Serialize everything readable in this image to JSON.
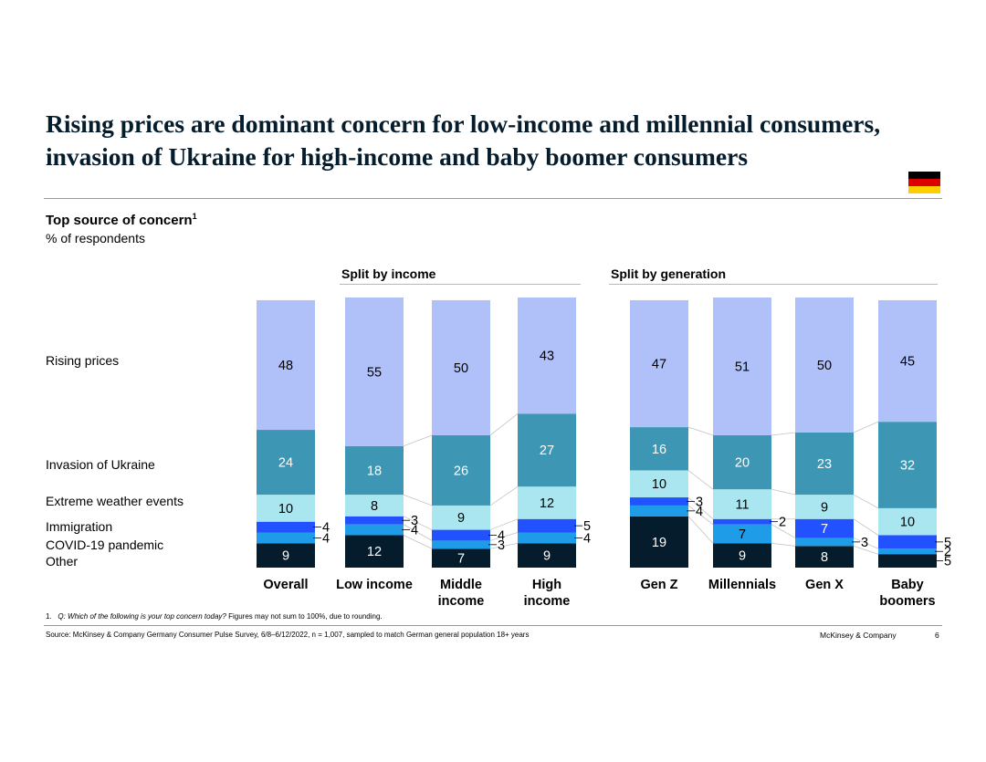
{
  "title": "Rising prices are dominant concern for low-income and millennial consumers, invasion of Ukraine for high-income and baby boomer consumers",
  "subtitle": "Top source of concern",
  "subtitle_sup": "1",
  "unit": "% of respondents",
  "flag": {
    "name": "germany-flag",
    "colors": [
      "#000000",
      "#dd0000",
      "#ffce00"
    ]
  },
  "group_income_title": "Split by income",
  "group_generation_title": "Split by generation",
  "footnote": {
    "number": "1.",
    "question_italic": "Q: Which of the following is your top concern today?",
    "rest": " Figures may not sum to 100%, due to rounding."
  },
  "source": "Source: McKinsey & Company Germany Consumer Pulse Survey, 6/8–6/12/2022, n = 1,007, sampled to match German general population 18+ years",
  "brand": "McKinsey & Company",
  "page_number": "6",
  "chart_data": {
    "type": "bar",
    "stacked": true,
    "categories": [
      "Overall",
      "Low income",
      "Middle income",
      "High income",
      "Gen Z",
      "Millennials",
      "Gen X",
      "Baby boomers"
    ],
    "category_labels": [
      [
        "Overall"
      ],
      [
        "Low income"
      ],
      [
        "Middle",
        "income"
      ],
      [
        "High",
        "income"
      ],
      [
        "Gen Z"
      ],
      [
        "Millennials"
      ],
      [
        "Gen X"
      ],
      [
        "Baby",
        "boomers"
      ]
    ],
    "groups": [
      {
        "name": "Split by income",
        "categories": [
          "Low income",
          "Middle income",
          "High income"
        ]
      },
      {
        "name": "Split by generation",
        "categories": [
          "Gen Z",
          "Millennials",
          "Gen X",
          "Baby boomers"
        ]
      }
    ],
    "series": [
      {
        "name": "Other",
        "color": "#051c2c",
        "text": "#ffffff",
        "values": [
          9,
          12,
          7,
          9,
          19,
          9,
          8,
          5
        ]
      },
      {
        "name": "COVID-19 pandemic",
        "color": "#1f9ce8",
        "text": "#000000",
        "values": [
          4,
          4,
          3,
          4,
          4,
          7,
          3,
          2
        ]
      },
      {
        "name": "Immigration",
        "color": "#2251ff",
        "text": "#ffffff",
        "values": [
          4,
          3,
          4,
          5,
          3,
          2,
          7,
          5
        ]
      },
      {
        "name": "Extreme weather events",
        "color": "#aae6f0",
        "text": "#000000",
        "values": [
          10,
          8,
          9,
          12,
          10,
          11,
          9,
          10
        ]
      },
      {
        "name": "Invasion of Ukraine",
        "color": "#3c96b4",
        "text": "#ffffff",
        "values": [
          24,
          18,
          26,
          27,
          16,
          20,
          23,
          32
        ]
      },
      {
        "name": "Rising prices",
        "color": "#b0c0f8",
        "text": "#000000",
        "values": [
          48,
          55,
          50,
          43,
          47,
          51,
          50,
          45
        ]
      }
    ],
    "legend_order_top_to_bottom": [
      "Rising prices",
      "Invasion of Ukraine",
      "Extreme weather events",
      "Immigration",
      "COVID-19 pandemic",
      "Other"
    ],
    "ylim": [
      0,
      100
    ]
  }
}
